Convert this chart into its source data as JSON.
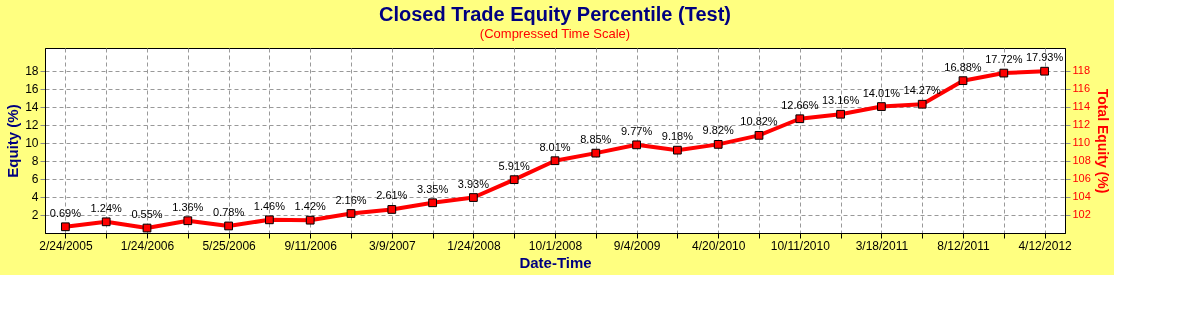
{
  "chart_data": {
    "type": "line",
    "title": "Closed Trade Equity Percentile (Test)",
    "xlabel": "Date-Time",
    "ylabel": "Equity (%)",
    "y2label": "Total Equity (%)",
    "annotations": [
      "(Compressed Time Scale)"
    ],
    "categories": [
      "2/24/2005",
      null,
      "1/24/2006",
      null,
      "5/25/2006",
      null,
      "9/11/2006",
      null,
      "3/9/2007",
      null,
      "1/24/2008",
      null,
      "10/1/2008",
      null,
      "9/4/2009",
      null,
      "4/20/2010",
      null,
      "10/11/2010",
      null,
      "3/18/2011",
      null,
      "8/12/2011",
      null,
      "4/12/2012"
    ],
    "series": [
      {
        "color": "#ff0000",
        "values": [
          0.69,
          1.24,
          0.55,
          1.36,
          0.78,
          1.46,
          1.42,
          2.16,
          2.61,
          3.35,
          3.93,
          5.91,
          8.01,
          8.85,
          9.77,
          9.18,
          9.82,
          10.82,
          12.66,
          13.16,
          14.01,
          14.27,
          16.88,
          17.72,
          17.93
        ]
      }
    ],
    "value_labels": [
      "0.69%",
      "1.24%",
      "0.55%",
      "1.36%",
      "0.78%",
      "1.46%",
      "1.42%",
      "2.16%",
      "2.61%",
      "3.35%",
      "3.93%",
      "5.91%",
      "8.01%",
      "8.85%",
      "9.77%",
      "9.18%",
      "9.82%",
      "10.82%",
      "12.66%",
      "13.16%",
      "14.01%",
      "14.27%",
      "16.88%",
      "17.72%",
      "17.93%"
    ],
    "ylim": [
      0,
      20.5
    ],
    "yticks": [
      2,
      4,
      6,
      8,
      10,
      12,
      14,
      16,
      18
    ],
    "y2lim": [
      100,
      120.5
    ],
    "y2ticks": [
      102,
      104,
      106,
      108,
      110,
      112,
      114,
      116,
      118
    ],
    "grid": true,
    "marker": "square",
    "line_style": "solid"
  }
}
